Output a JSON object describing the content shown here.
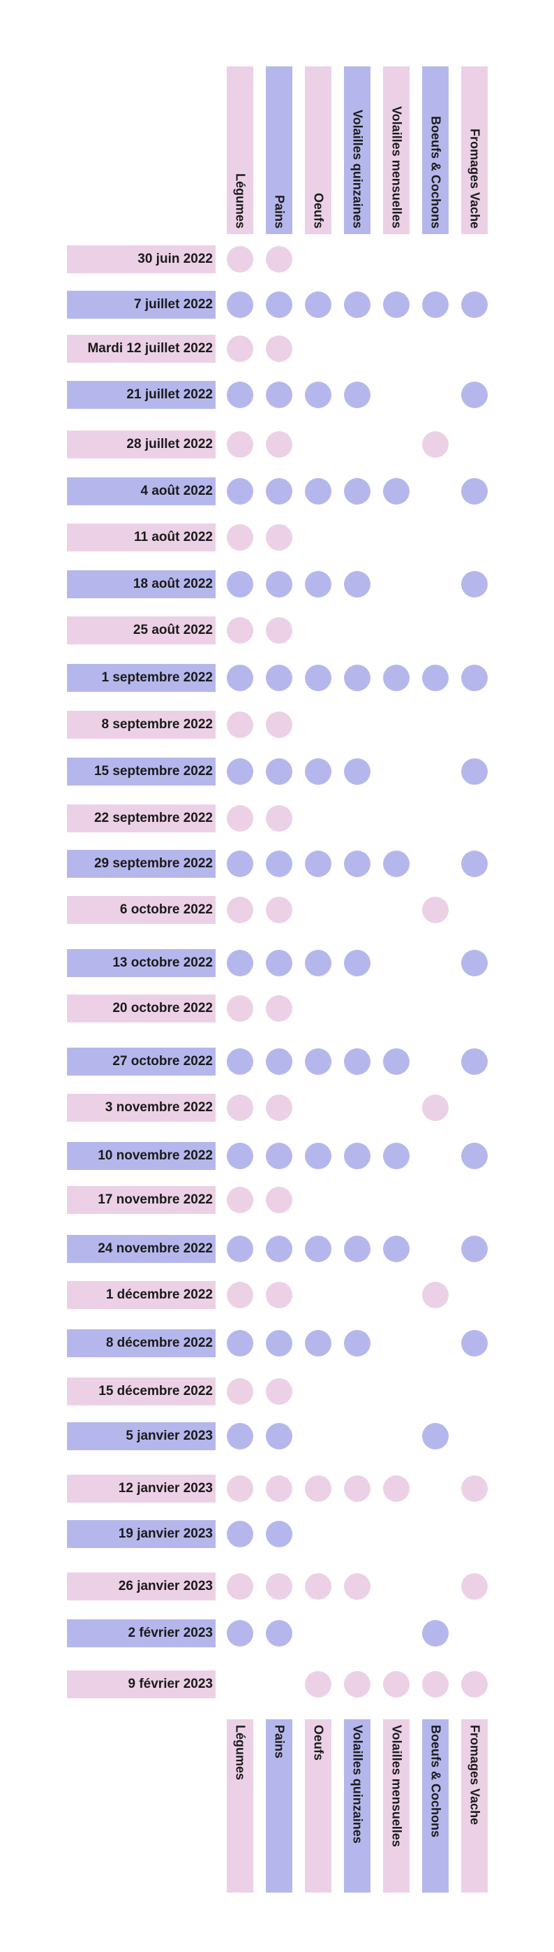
{
  "columns": [
    "Légumes",
    "Pains",
    "Oeufs",
    "Volailles quinzaines",
    "Volailles mensuelles",
    "Boeufs & Cochons",
    "Fromages Vache"
  ],
  "column_colors": [
    "pink",
    "blue",
    "pink",
    "blue",
    "pink",
    "blue",
    "pink"
  ],
  "colors": {
    "pink": "#ecd1e6",
    "blue": "#b5b7ec"
  },
  "rows": [
    {
      "label": "30 juin 2022",
      "color": "pink",
      "dots": [
        0,
        1
      ]
    },
    {
      "label": "7 juillet 2022",
      "color": "blue",
      "dots": [
        0,
        1,
        2,
        3,
        4,
        5,
        6
      ]
    },
    {
      "label": "Mardi 12 juillet 2022",
      "color": "pink",
      "dots": [
        0,
        1
      ]
    },
    {
      "label": "21 juillet 2022",
      "color": "blue",
      "dots": [
        0,
        1,
        2,
        3,
        6
      ]
    },
    {
      "label": "28 juillet 2022",
      "color": "pink",
      "dots": [
        0,
        1,
        5
      ]
    },
    {
      "label": "4 août 2022",
      "color": "blue",
      "dots": [
        0,
        1,
        2,
        3,
        4,
        6
      ]
    },
    {
      "label": "11 août 2022",
      "color": "pink",
      "dots": [
        0,
        1
      ]
    },
    {
      "label": "18 août 2022",
      "color": "blue",
      "dots": [
        0,
        1,
        2,
        3,
        6
      ]
    },
    {
      "label": "25 août 2022",
      "color": "pink",
      "dots": [
        0,
        1
      ]
    },
    {
      "label": "1 septembre 2022",
      "color": "blue",
      "dots": [
        0,
        1,
        2,
        3,
        4,
        5,
        6
      ]
    },
    {
      "label": "8 septembre 2022",
      "color": "pink",
      "dots": [
        0,
        1
      ]
    },
    {
      "label": "15 septembre 2022",
      "color": "blue",
      "dots": [
        0,
        1,
        2,
        3,
        6
      ]
    },
    {
      "label": "22 septembre 2022",
      "color": "pink",
      "dots": [
        0,
        1
      ]
    },
    {
      "label": "29 septembre 2022",
      "color": "blue",
      "dots": [
        0,
        1,
        2,
        3,
        4,
        6
      ]
    },
    {
      "label": "6 octobre 2022",
      "color": "pink",
      "dots": [
        0,
        1,
        5
      ]
    },
    {
      "label": "13 octobre 2022",
      "color": "blue",
      "dots": [
        0,
        1,
        2,
        3,
        6
      ]
    },
    {
      "label": "20 octobre 2022",
      "color": "pink",
      "dots": [
        0,
        1
      ]
    },
    {
      "label": "27 octobre 2022",
      "color": "blue",
      "dots": [
        0,
        1,
        2,
        3,
        4,
        6
      ]
    },
    {
      "label": "3 novembre 2022",
      "color": "pink",
      "dots": [
        0,
        1,
        5
      ]
    },
    {
      "label": "10 novembre 2022",
      "color": "blue",
      "dots": [
        0,
        1,
        2,
        3,
        4,
        6
      ]
    },
    {
      "label": "17 novembre 2022",
      "color": "pink",
      "dots": [
        0,
        1
      ]
    },
    {
      "label": "24 novembre 2022",
      "color": "blue",
      "dots": [
        0,
        1,
        2,
        3,
        4,
        6
      ]
    },
    {
      "label": "1 décembre 2022",
      "color": "pink",
      "dots": [
        0,
        1,
        5
      ]
    },
    {
      "label": "8 décembre 2022",
      "color": "blue",
      "dots": [
        0,
        1,
        2,
        3,
        6
      ]
    },
    {
      "label": "15 décembre 2022",
      "color": "pink",
      "dots": [
        0,
        1
      ]
    },
    {
      "label": "5 janvier 2023",
      "color": "blue",
      "dots": [
        0,
        1,
        5
      ]
    },
    {
      "label": "12 janvier 2023",
      "color": "pink",
      "dots": [
        0,
        1,
        2,
        3,
        4,
        6
      ]
    },
    {
      "label": "19 janvier 2023",
      "color": "blue",
      "dots": [
        0,
        1
      ]
    },
    {
      "label": "26 janvier 2023",
      "color": "pink",
      "dots": [
        0,
        1,
        2,
        3,
        6
      ]
    },
    {
      "label": "2 février 2023",
      "color": "blue",
      "dots": [
        0,
        1,
        5
      ]
    },
    {
      "label": "9 février 2023",
      "color": "pink",
      "dots": [
        2,
        3,
        4,
        5,
        6
      ]
    }
  ]
}
